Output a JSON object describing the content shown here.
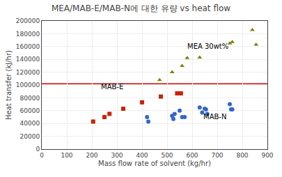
{
  "chart_data": {
    "type": "scatter",
    "title": "MEA/MAB-E/MAB-N에 대한 유량 vs heat flow",
    "x_label": "Mass flow rate of solvent (kg/hr)",
    "y_label": "Heat transfer (kJ/hr)",
    "xlim": [
      0,
      900
    ],
    "ylim": [
      0,
      200000
    ],
    "xticks": [
      0,
      100,
      200,
      300,
      400,
      500,
      600,
      700,
      800,
      900
    ],
    "yticks": [
      0,
      20000,
      40000,
      60000,
      80000,
      100000,
      120000,
      140000,
      160000,
      180000,
      200000
    ],
    "grid": true,
    "series": [
      {
        "color": "#808000",
        "marker": "triangle-up",
        "x": [
          470,
          520,
          560,
          580,
          630,
          750,
          760,
          840,
          855
        ],
        "values": [
          108000,
          120000,
          130000,
          142000,
          143000,
          165000,
          167000,
          186000,
          163000
        ]
      },
      {
        "color": "#cc2200",
        "marker": "square",
        "x": [
          205,
          250,
          270,
          325,
          400,
          475,
          540,
          555
        ],
        "values": [
          43000,
          50000,
          55000,
          63000,
          73000,
          82000,
          87000,
          87000
        ]
      },
      {
        "color": "#3366cc",
        "marker": "circle",
        "x": [
          420,
          425,
          520,
          525,
          530,
          550,
          560,
          570,
          630,
          640,
          650,
          655,
          660,
          750,
          755,
          760
        ],
        "values": [
          50000,
          43000,
          52000,
          47000,
          55000,
          60000,
          50000,
          50000,
          65000,
          57000,
          63000,
          62000,
          55000,
          70000,
          62000,
          62000
        ]
      }
    ],
    "reference_lines": [
      {
        "y": 102000,
        "color": "#cc0000"
      }
    ],
    "annotations": [
      {
        "text": "MEA 30wt%",
        "x": 575,
        "y": 152000
      },
      {
        "text": "MAB-E",
        "x": 230,
        "y": 89000
      },
      {
        "text": "MAB-N",
        "x": 640,
        "y": 42000
      }
    ]
  }
}
